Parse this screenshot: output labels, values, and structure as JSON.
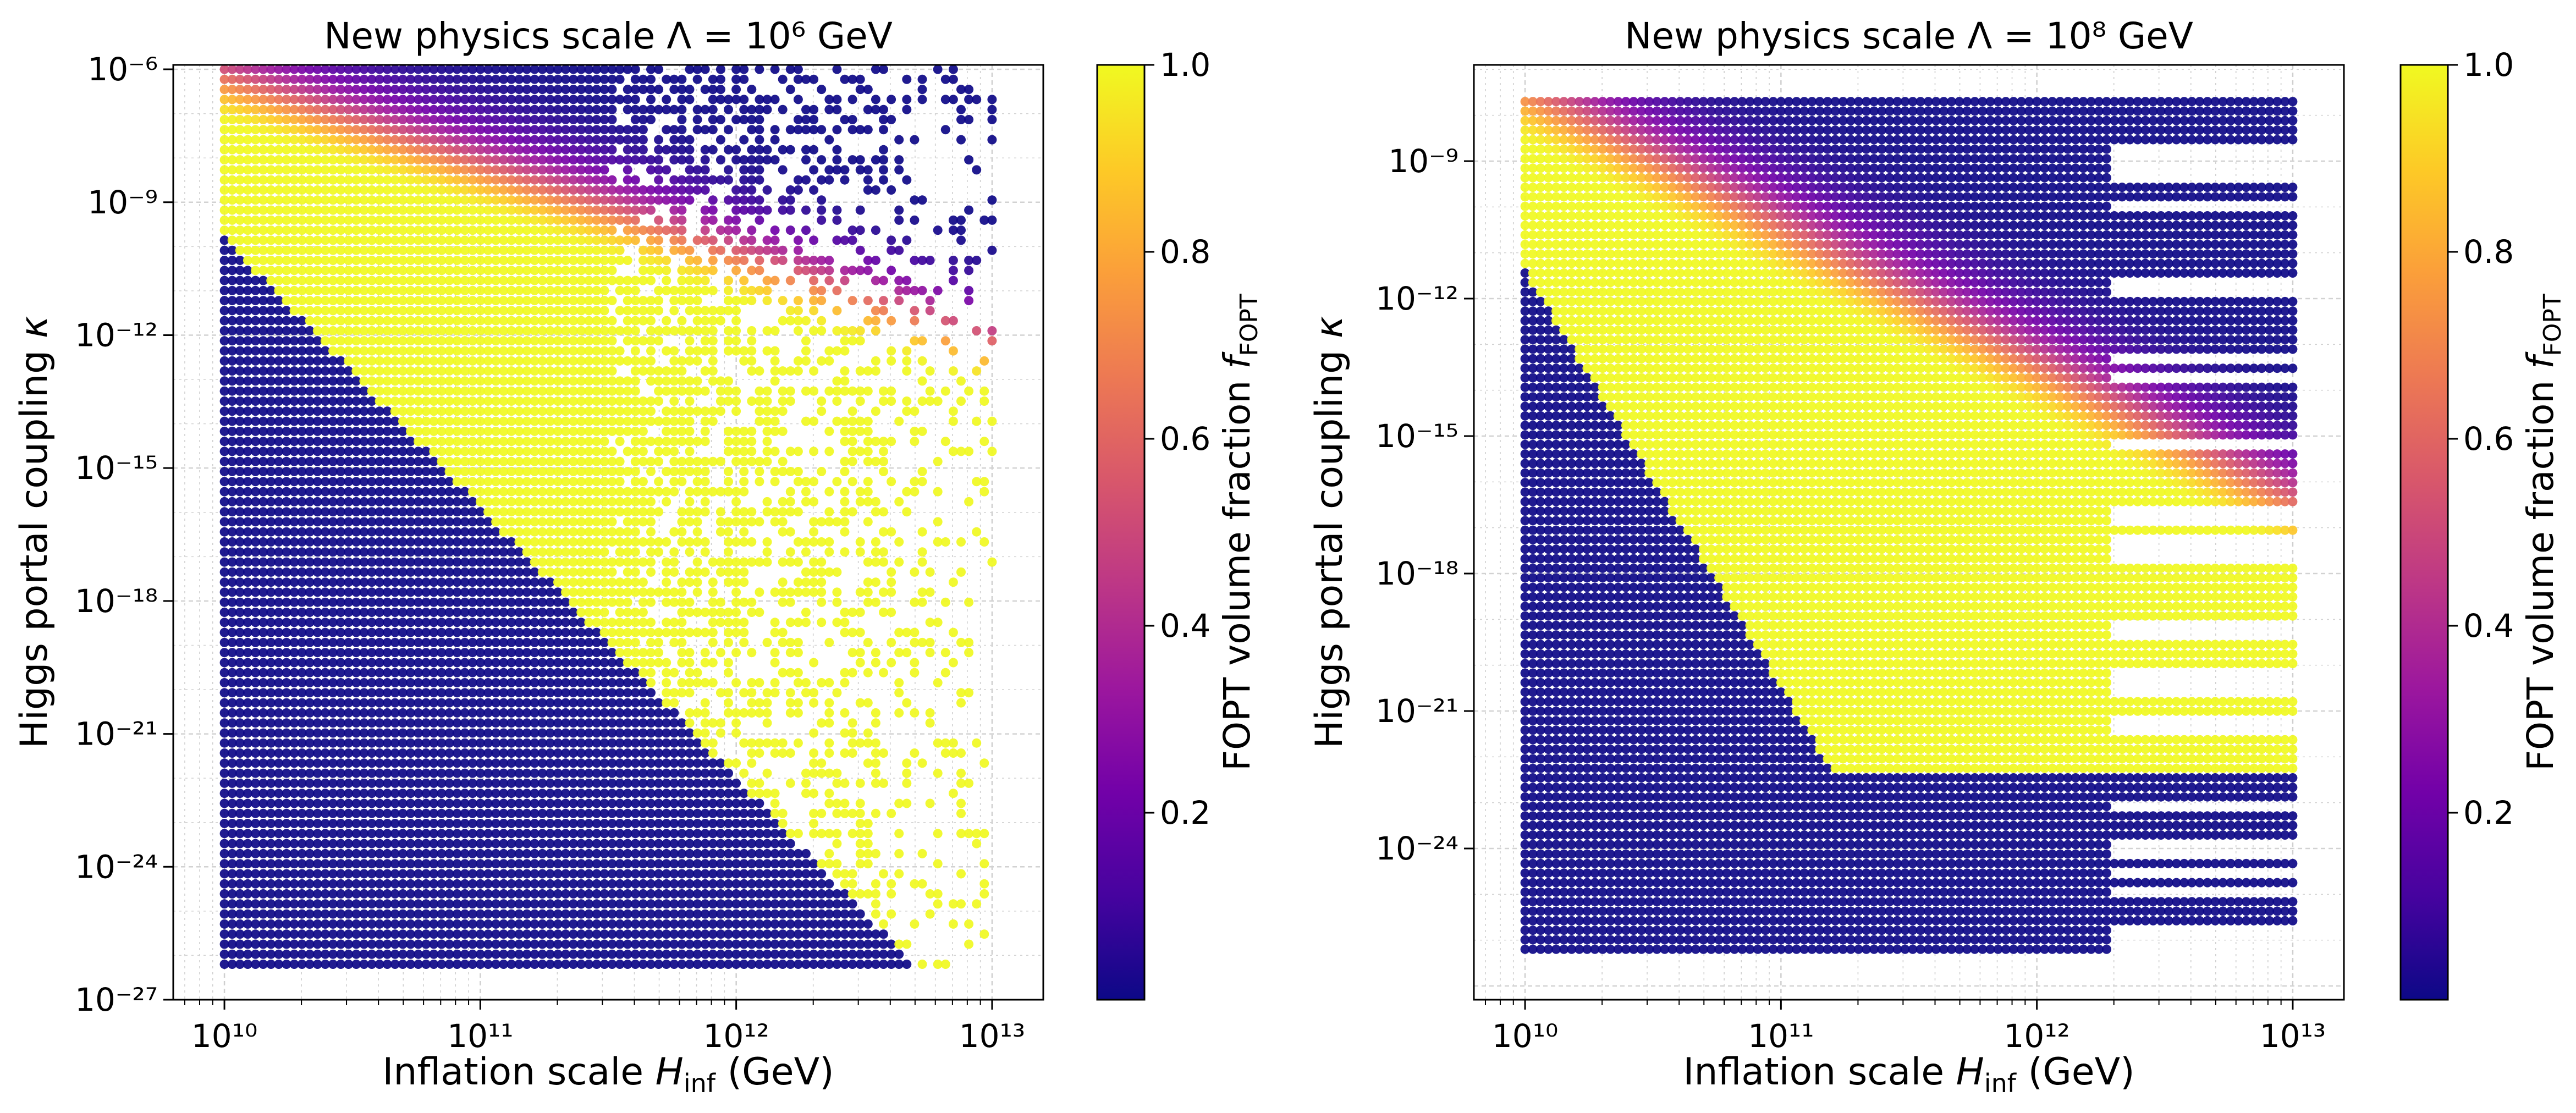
{
  "colormap": {
    "name": "plasma",
    "stops": [
      "#0d0887",
      "#46039f",
      "#7201a8",
      "#9c179e",
      "#bd3786",
      "#d8576b",
      "#ed7953",
      "#fb9f3a",
      "#fdca26",
      "#f0f921"
    ]
  },
  "chart_data": [
    {
      "type": "scatter",
      "title": "New physics scale Λ = 10⁶ GeV",
      "xlabel": "Inflation scale H_inf (GeV)",
      "ylabel": "Higgs portal coupling κ",
      "colorbar_label": "FOPT volume fraction f_FOPT",
      "x_scale": "log",
      "y_scale": "log",
      "xlim_log10": [
        9.8,
        13.2
      ],
      "ylim_log10": [
        -27,
        -5.9
      ],
      "x_ticks": [
        {
          "log": 10,
          "label": "10¹⁰"
        },
        {
          "log": 11,
          "label": "10¹¹"
        },
        {
          "log": 12,
          "label": "10¹²"
        },
        {
          "log": 13,
          "label": "10¹³"
        }
      ],
      "y_ticks": [
        {
          "log": -6,
          "label": "10⁻⁶"
        },
        {
          "log": -9,
          "label": "10⁻⁹"
        },
        {
          "log": -12,
          "label": "10⁻¹²"
        },
        {
          "log": -15,
          "label": "10⁻¹⁵"
        },
        {
          "log": -18,
          "label": "10⁻¹⁸"
        },
        {
          "log": -21,
          "label": "10⁻²¹"
        },
        {
          "log": -24,
          "label": "10⁻²⁴"
        },
        {
          "log": -27,
          "label": "10⁻²⁷"
        }
      ],
      "colorbar_ticks": [
        {
          "value": 0.2,
          "label": "0.2"
        },
        {
          "value": 0.4,
          "label": "0.4"
        },
        {
          "value": 0.6,
          "label": "0.6"
        },
        {
          "value": 0.8,
          "label": "0.8"
        },
        {
          "value": 1.0,
          "label": "1.0"
        }
      ],
      "grid": true,
      "scan": {
        "x_log_range": [
          10,
          13
        ],
        "y_log_range": [
          -26.2,
          -6
        ],
        "regions": [
          {
            "description": "f=0 below boundary",
            "boundary_line": {
              "x_log": [
                10,
                12.0
              ],
              "y_log": [
                -9.8,
                -22.0
              ]
            }
          },
          {
            "description": "f≈1 ridge centered on log κ ≈ -11.5 - 2.0*(log H - 10.5)"
          },
          {
            "description": "sparse scattered points for H > 3×10¹¹ GeV"
          }
        ]
      }
    },
    {
      "type": "scatter",
      "title": "New physics scale Λ = 10⁸ GeV",
      "xlabel": "Inflation scale H_inf (GeV)",
      "ylabel": "Higgs portal coupling κ",
      "colorbar_label": "FOPT volume fraction f_FOPT",
      "x_scale": "log",
      "y_scale": "log",
      "xlim_log10": [
        9.8,
        13.2
      ],
      "ylim_log10": [
        -27.3,
        -6.9
      ],
      "x_ticks": [
        {
          "log": 10,
          "label": "10¹⁰"
        },
        {
          "log": 11,
          "label": "10¹¹"
        },
        {
          "log": 12,
          "label": "10¹²"
        },
        {
          "log": 13,
          "label": "10¹³"
        }
      ],
      "y_ticks": [
        {
          "log": -9,
          "label": "10⁻⁹"
        },
        {
          "log": -12,
          "label": "10⁻¹²"
        },
        {
          "log": -15,
          "label": "10⁻¹⁵"
        },
        {
          "log": -18,
          "label": "10⁻¹⁸"
        },
        {
          "log": -21,
          "label": "10⁻²¹"
        },
        {
          "log": -24,
          "label": "10⁻²⁴"
        }
      ],
      "colorbar_ticks": [
        {
          "value": 0.2,
          "label": "0.2"
        },
        {
          "value": 0.4,
          "label": "0.4"
        },
        {
          "value": 0.6,
          "label": "0.6"
        },
        {
          "value": 0.8,
          "label": "0.8"
        },
        {
          "value": 1.0,
          "label": "1.0"
        }
      ],
      "grid": true,
      "scan": {
        "x_log_range": [
          10,
          13
        ],
        "y_log_range": [
          -26.2,
          -7.7
        ],
        "regions": [
          {
            "description": "f=0 below boundary",
            "boundary_line": {
              "x_log": [
                10,
                11.0
              ],
              "y_log": [
                -11.4,
                -20.5
              ]
            }
          },
          {
            "description": "f≈1 region for 10¹¹–10¹² GeV between κ 10⁻¹¹ and 10⁻²²"
          },
          {
            "description": "horizontal bands extend to 10¹³ GeV"
          }
        ]
      }
    }
  ]
}
